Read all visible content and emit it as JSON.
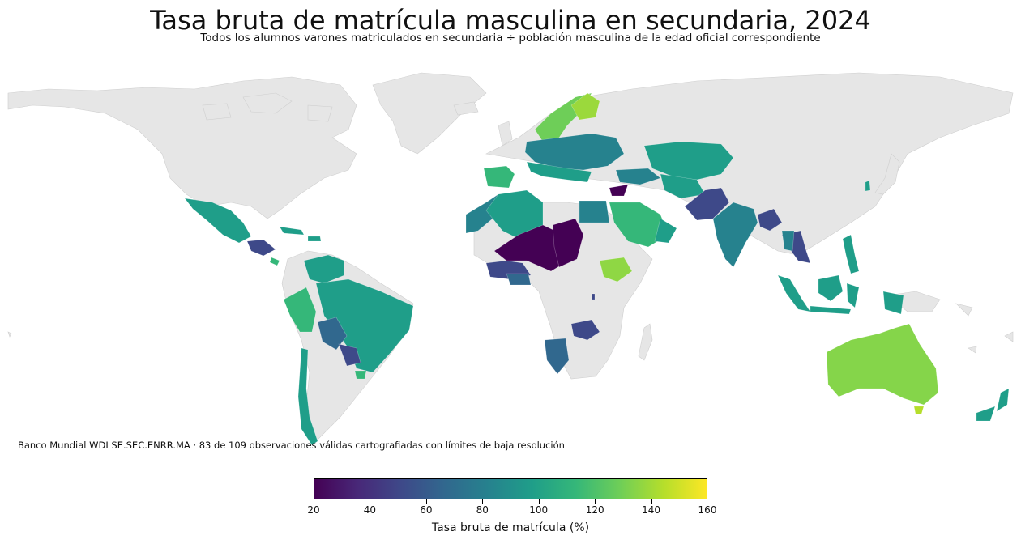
{
  "title": "Tasa bruta de matrícula masculina en secundaria, 2024",
  "subtitle": "Todos los alumnos varones matriculados en secundaria ÷ población masculina de la edad oficial correspondiente",
  "source": "Banco Mundial WDI SE.SEC.ENRR.MA · 83 de 109 observaciones válidas cartografiadas con límites de baja resolución",
  "colorbar": {
    "title": "Tasa bruta de matrícula (%)",
    "min": 20,
    "max": 160,
    "ticks": [
      "20",
      "40",
      "60",
      "80",
      "100",
      "120",
      "140",
      "160"
    ],
    "colormap": "viridis"
  },
  "colors": {
    "no_data": "#e6e6e6",
    "viridis": [
      "#440154",
      "#482878",
      "#3e4989",
      "#31688e",
      "#26828e",
      "#1f9e89",
      "#35b779",
      "#6ece58",
      "#b5de2b",
      "#fde725"
    ]
  }
}
